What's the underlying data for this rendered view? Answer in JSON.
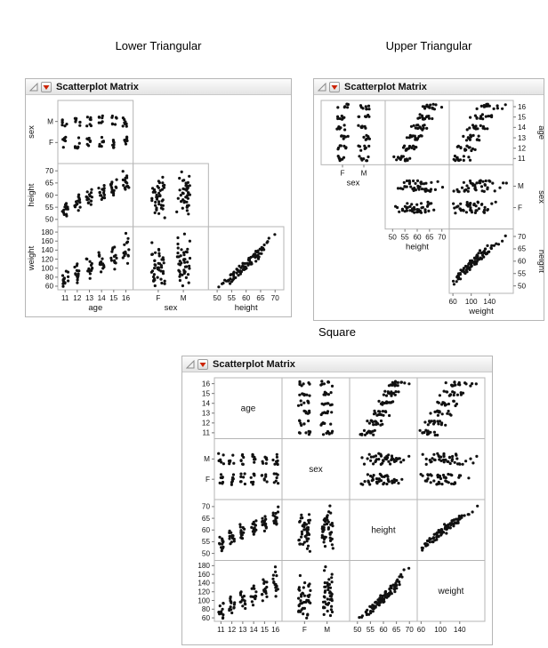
{
  "window": {
    "background": "#ffffff"
  },
  "panels": [
    {
      "heading": "Lower Triangular",
      "title": "Scatterplot Matrix"
    },
    {
      "heading": "Upper Triangular",
      "title": "Scatterplot Matrix"
    },
    {
      "heading": "Square",
      "title": "Scatterplot Matrix"
    }
  ],
  "icons": {
    "disclosure": "open-triangle",
    "menu": "red-triangle-down"
  },
  "colors": {
    "point": "#111111",
    "cell_border": "#b5b5b5",
    "tick": "#777777",
    "menu_triangle": "#cc2200",
    "titlebar_border": "#c9c9c9"
  },
  "chart_data": {
    "type": "scatter",
    "subtype": "scatterplot_matrix",
    "variables": [
      "age",
      "sex",
      "height",
      "weight"
    ],
    "matrices": [
      {
        "name": "Lower Triangular",
        "layout": "lower",
        "rows": [
          "sex",
          "height",
          "weight"
        ],
        "cols": [
          "age",
          "sex",
          "height"
        ]
      },
      {
        "name": "Upper Triangular",
        "layout": "upper",
        "rows": [
          "age",
          "sex",
          "height"
        ],
        "cols": [
          "sex",
          "height",
          "weight"
        ]
      },
      {
        "name": "Square",
        "layout": "square",
        "rows": [
          "age",
          "sex",
          "height",
          "weight"
        ],
        "cols": [
          "age",
          "sex",
          "height",
          "weight"
        ]
      }
    ],
    "axes": {
      "age": {
        "type": "numeric",
        "min": 10.4,
        "max": 16.6,
        "x_ticks": [
          11,
          12,
          13,
          14,
          15,
          16
        ],
        "y_ticks": [
          11,
          12,
          13,
          14,
          15,
          16
        ]
      },
      "sex": {
        "type": "categorical",
        "categories": [
          "F",
          "M"
        ]
      },
      "height": {
        "type": "numeric",
        "min": 47,
        "max": 73,
        "x_ticks": [
          50,
          55,
          60,
          65,
          70
        ],
        "y_ticks": [
          50,
          55,
          60,
          65,
          70
        ]
      },
      "weight": {
        "type": "numeric",
        "min": 52,
        "max": 192,
        "x_ticks": [
          60,
          100,
          140
        ],
        "y_ticks": [
          60,
          80,
          100,
          120,
          140,
          160,
          180
        ]
      }
    },
    "records": [
      [
        11,
        "F",
        52,
        66
      ],
      [
        11,
        "F",
        54,
        75
      ],
      [
        11,
        "F",
        51,
        60
      ],
      [
        11,
        "F",
        55,
        72
      ],
      [
        11,
        "F",
        53,
        74
      ],
      [
        11,
        "F",
        56,
        82
      ],
      [
        11,
        "F",
        54,
        68
      ],
      [
        11,
        "M",
        53,
        72
      ],
      [
        11,
        "M",
        55,
        76
      ],
      [
        11,
        "M",
        52,
        63
      ],
      [
        11,
        "M",
        56,
        92
      ],
      [
        11,
        "M",
        54,
        70
      ],
      [
        11,
        "M",
        57,
        95
      ],
      [
        11,
        "M",
        55,
        85
      ],
      [
        12,
        "F",
        54,
        70
      ],
      [
        12,
        "F",
        56,
        88
      ],
      [
        12,
        "F",
        58,
        92
      ],
      [
        12,
        "F",
        55,
        75
      ],
      [
        12,
        "F",
        57,
        94
      ],
      [
        12,
        "F",
        59,
        96
      ],
      [
        12,
        "F",
        56,
        78
      ],
      [
        12,
        "M",
        55,
        84
      ],
      [
        12,
        "M",
        57,
        88
      ],
      [
        12,
        "M",
        59,
        110
      ],
      [
        12,
        "M",
        56,
        80
      ],
      [
        12,
        "M",
        58,
        102
      ],
      [
        12,
        "M",
        60,
        105
      ],
      [
        12,
        "M",
        57,
        86
      ],
      [
        13,
        "F",
        56,
        80
      ],
      [
        13,
        "F",
        58,
        99
      ],
      [
        13,
        "F",
        60,
        100
      ],
      [
        13,
        "F",
        57,
        95
      ],
      [
        13,
        "F",
        59,
        96
      ],
      [
        13,
        "F",
        61,
        118
      ],
      [
        13,
        "F",
        58,
        90
      ],
      [
        13,
        "M",
        57,
        96
      ],
      [
        13,
        "M",
        59,
        98
      ],
      [
        13,
        "M",
        61,
        120
      ],
      [
        13,
        "M",
        58,
        92
      ],
      [
        13,
        "M",
        60,
        112
      ],
      [
        13,
        "M",
        62,
        115
      ],
      [
        13,
        "M",
        59,
        105
      ],
      [
        14,
        "F",
        58,
        92
      ],
      [
        14,
        "F",
        60,
        110
      ],
      [
        14,
        "F",
        62,
        112
      ],
      [
        14,
        "F",
        59,
        104
      ],
      [
        14,
        "F",
        61,
        108
      ],
      [
        14,
        "F",
        63,
        130
      ],
      [
        14,
        "F",
        60,
        98
      ],
      [
        14,
        "M",
        59,
        108
      ],
      [
        14,
        "M",
        61,
        110
      ],
      [
        14,
        "M",
        63,
        135
      ],
      [
        14,
        "M",
        60,
        102
      ],
      [
        14,
        "M",
        62,
        126
      ],
      [
        14,
        "M",
        64,
        128
      ],
      [
        14,
        "M",
        61,
        118
      ],
      [
        15,
        "F",
        60,
        100
      ],
      [
        15,
        "F",
        62,
        124
      ],
      [
        15,
        "F",
        64,
        126
      ],
      [
        15,
        "F",
        61,
        115
      ],
      [
        15,
        "F",
        63,
        118
      ],
      [
        15,
        "F",
        65,
        142
      ],
      [
        15,
        "F",
        62,
        110
      ],
      [
        15,
        "M",
        61,
        120
      ],
      [
        15,
        "M",
        63,
        122
      ],
      [
        15,
        "M",
        65,
        146
      ],
      [
        15,
        "M",
        62,
        112
      ],
      [
        15,
        "M",
        64,
        138
      ],
      [
        15,
        "M",
        66,
        142
      ],
      [
        15,
        "M",
        63,
        130
      ],
      [
        16,
        "F",
        62,
        112
      ],
      [
        16,
        "F",
        64,
        136
      ],
      [
        16,
        "F",
        66,
        138
      ],
      [
        16,
        "F",
        63,
        128
      ],
      [
        16,
        "F",
        65,
        130
      ],
      [
        16,
        "F",
        67,
        156
      ],
      [
        16,
        "F",
        64,
        122
      ],
      [
        16,
        "M",
        63,
        132
      ],
      [
        16,
        "M",
        65,
        134
      ],
      [
        16,
        "M",
        67,
        160
      ],
      [
        16,
        "M",
        64,
        126
      ],
      [
        16,
        "M",
        66,
        152
      ],
      [
        16,
        "M",
        68,
        168
      ],
      [
        16,
        "M",
        65,
        142
      ],
      [
        16,
        "M",
        70,
        175
      ]
    ]
  }
}
